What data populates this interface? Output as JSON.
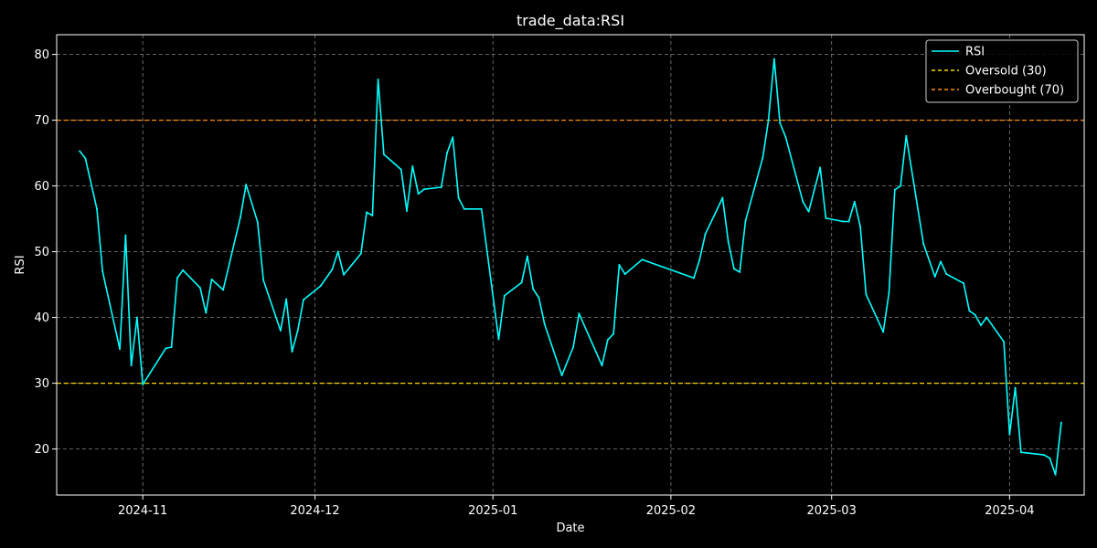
{
  "chart_data": {
    "type": "line",
    "title": "trade_data:RSI",
    "xlabel": "Date",
    "ylabel": "RSI",
    "xlim": [
      "2024-10-17",
      "2025-04-14"
    ],
    "ylim": [
      13,
      83
    ],
    "grid": true,
    "legend_position": "top-right",
    "x_ticks": [
      {
        "date": "2024-11-01",
        "label": "2024-11"
      },
      {
        "date": "2024-12-01",
        "label": "2024-12"
      },
      {
        "date": "2025-01-01",
        "label": "2025-01"
      },
      {
        "date": "2025-02-01",
        "label": "2025-02"
      },
      {
        "date": "2025-03-01",
        "label": "2025-03"
      },
      {
        "date": "2025-04-01",
        "label": "2025-04"
      }
    ],
    "y_ticks": [
      20,
      30,
      40,
      50,
      60,
      70,
      80
    ],
    "series": [
      {
        "name": "RSI",
        "color": "#00ffff",
        "style": "solid",
        "points": [
          [
            "2024-10-21",
            65.3
          ],
          [
            "2024-10-22",
            64.2
          ],
          [
            "2024-10-24",
            56.5
          ],
          [
            "2024-10-25",
            47.0
          ],
          [
            "2024-10-28",
            35.2
          ],
          [
            "2024-10-29",
            52.5
          ],
          [
            "2024-10-30",
            32.7
          ],
          [
            "2024-10-31",
            40.0
          ],
          [
            "2024-11-01",
            29.8
          ],
          [
            "2024-11-05",
            35.3
          ],
          [
            "2024-11-06",
            35.5
          ],
          [
            "2024-11-07",
            46.0
          ],
          [
            "2024-11-08",
            47.2
          ],
          [
            "2024-11-11",
            44.5
          ],
          [
            "2024-11-12",
            40.7
          ],
          [
            "2024-11-13",
            45.8
          ],
          [
            "2024-11-15",
            44.2
          ],
          [
            "2024-11-18",
            55.2
          ],
          [
            "2024-11-19",
            60.2
          ],
          [
            "2024-11-21",
            54.5
          ],
          [
            "2024-11-22",
            45.7
          ],
          [
            "2024-11-25",
            38.0
          ],
          [
            "2024-11-26",
            42.8
          ],
          [
            "2024-11-27",
            34.8
          ],
          [
            "2024-11-28",
            38.0
          ],
          [
            "2024-11-29",
            42.7
          ],
          [
            "2024-12-02",
            44.8
          ],
          [
            "2024-12-04",
            47.3
          ],
          [
            "2024-12-05",
            50.0
          ],
          [
            "2024-12-06",
            46.5
          ],
          [
            "2024-12-09",
            49.7
          ],
          [
            "2024-12-10",
            56.0
          ],
          [
            "2024-12-11",
            55.5
          ],
          [
            "2024-12-12",
            76.2
          ],
          [
            "2024-12-13",
            64.8
          ],
          [
            "2024-12-16",
            62.5
          ],
          [
            "2024-12-17",
            56.2
          ],
          [
            "2024-12-18",
            63.0
          ],
          [
            "2024-12-19",
            58.8
          ],
          [
            "2024-12-20",
            59.5
          ],
          [
            "2024-12-23",
            59.8
          ],
          [
            "2024-12-24",
            65.0
          ],
          [
            "2024-12-25",
            67.4
          ],
          [
            "2024-12-26",
            58.2
          ],
          [
            "2024-12-27",
            56.5
          ],
          [
            "2024-12-30",
            56.5
          ],
          [
            "2025-01-02",
            36.7
          ],
          [
            "2025-01-03",
            43.3
          ],
          [
            "2025-01-06",
            45.3
          ],
          [
            "2025-01-07",
            49.3
          ],
          [
            "2025-01-08",
            44.3
          ],
          [
            "2025-01-09",
            43.0
          ],
          [
            "2025-01-10",
            39.0
          ],
          [
            "2025-01-13",
            31.2
          ],
          [
            "2025-01-15",
            35.5
          ],
          [
            "2025-01-16",
            40.6
          ],
          [
            "2025-01-20",
            32.7
          ],
          [
            "2025-01-21",
            36.6
          ],
          [
            "2025-01-22",
            37.5
          ],
          [
            "2025-01-23",
            48.0
          ],
          [
            "2025-01-24",
            46.6
          ],
          [
            "2025-01-27",
            48.8
          ],
          [
            "2025-02-05",
            46.0
          ],
          [
            "2025-02-06",
            48.8
          ],
          [
            "2025-02-07",
            52.7
          ],
          [
            "2025-02-10",
            58.2
          ],
          [
            "2025-02-11",
            51.5
          ],
          [
            "2025-02-12",
            47.4
          ],
          [
            "2025-02-13",
            46.9
          ],
          [
            "2025-02-14",
            54.7
          ],
          [
            "2025-02-17",
            64.3
          ],
          [
            "2025-02-18",
            70.0
          ],
          [
            "2025-02-19",
            79.3
          ],
          [
            "2025-02-20",
            69.6
          ],
          [
            "2025-02-21",
            67.4
          ],
          [
            "2025-02-24",
            57.6
          ],
          [
            "2025-02-25",
            56.1
          ],
          [
            "2025-02-27",
            62.8
          ],
          [
            "2025-02-28",
            55.1
          ],
          [
            "2025-03-03",
            54.6
          ],
          [
            "2025-03-04",
            54.6
          ],
          [
            "2025-03-05",
            57.6
          ],
          [
            "2025-03-06",
            53.8
          ],
          [
            "2025-03-07",
            43.5
          ],
          [
            "2025-03-10",
            37.8
          ],
          [
            "2025-03-11",
            43.8
          ],
          [
            "2025-03-12",
            59.4
          ],
          [
            "2025-03-13",
            60.0
          ],
          [
            "2025-03-14",
            67.6
          ],
          [
            "2025-03-17",
            51.2
          ],
          [
            "2025-03-19",
            46.2
          ],
          [
            "2025-03-20",
            48.5
          ],
          [
            "2025-03-21",
            46.6
          ],
          [
            "2025-03-24",
            45.2
          ],
          [
            "2025-03-25",
            41.0
          ],
          [
            "2025-03-26",
            40.4
          ],
          [
            "2025-03-27",
            38.8
          ],
          [
            "2025-03-28",
            40.0
          ],
          [
            "2025-03-31",
            36.3
          ],
          [
            "2025-04-01",
            22.2
          ],
          [
            "2025-04-02",
            29.3
          ],
          [
            "2025-04-03",
            19.5
          ],
          [
            "2025-04-07",
            19.1
          ],
          [
            "2025-04-08",
            18.6
          ],
          [
            "2025-04-09",
            16.1
          ],
          [
            "2025-04-10",
            24.0
          ]
        ]
      }
    ],
    "reference_lines": [
      {
        "name": "Oversold (30)",
        "y": 30,
        "color": "#ffd700",
        "style": "dashed"
      },
      {
        "name": "Overbought (70)",
        "y": 70,
        "color": "#ff8c00",
        "style": "dashed"
      }
    ]
  }
}
